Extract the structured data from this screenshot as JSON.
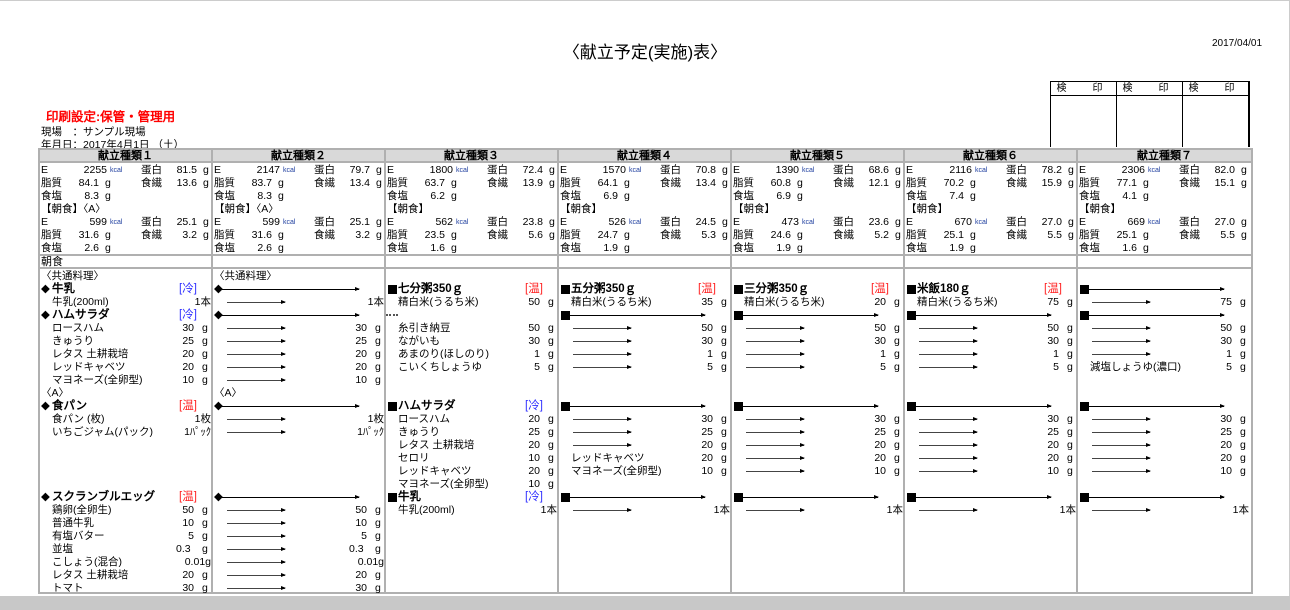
{
  "title": "〈献立予定(実施)表〉",
  "date": "2017/04/01",
  "stamp": {
    "labels": [
      "検　印",
      "検　印",
      "検　印"
    ]
  },
  "print_setting": "印刷設定:保管・管理用",
  "site": "現場　：サンプル現場",
  "ymd": "年月日：2017年4月1日 （土）",
  "meal_label": "朝食",
  "units": {
    "kcal": "kcal",
    "g": "g"
  },
  "nut_labels": {
    "E": "E",
    "protein": "蛋白",
    "fat": "脂質",
    "fiber": "食繊",
    "salt": "食塩"
  },
  "colors": {
    "cold": "#3030ff",
    "hot": "#ff2020",
    "print_setting": "#ff0000",
    "header_bg": "#d9d9d9"
  },
  "columns": [
    {
      "title": "献立種類１",
      "total": {
        "E": "2255",
        "protein": "81.5",
        "fat": "84.1",
        "fiber": "13.6",
        "salt": "8.3"
      },
      "bk_label": "【朝食】〈A〉",
      "bk": {
        "E": "599",
        "protein": "25.1",
        "fat": "31.6",
        "fiber": "3.2",
        "salt": "2.6"
      },
      "rows": [
        {
          "t": "h",
          "name": "〈共通料理〉"
        },
        {
          "t": "d",
          "m": "◆",
          "name": "牛乳",
          "tag": "[冷]",
          "tt": "cold"
        },
        {
          "t": "i",
          "name": "牛乳(200ml)",
          "q": "1本"
        },
        {
          "t": "d",
          "m": "◆",
          "name": "ハムサラダ",
          "tag": "[冷]",
          "tt": "cold"
        },
        {
          "t": "i",
          "name": "ロースハム",
          "q": "30",
          "u": "g"
        },
        {
          "t": "i",
          "name": "きゅうり",
          "q": "25",
          "u": "g"
        },
        {
          "t": "i",
          "name": "レタス 土耕栽培",
          "q": "20",
          "u": "g"
        },
        {
          "t": "i",
          "name": "レッドキャベツ",
          "q": "20",
          "u": "g"
        },
        {
          "t": "i",
          "name": "マヨネーズ(全卵型)",
          "q": "10",
          "u": "g"
        },
        {
          "t": "h",
          "name": "〈A〉"
        },
        {
          "t": "d",
          "m": "◆",
          "name": "食パン",
          "tag": "[温]",
          "tt": "hot"
        },
        {
          "t": "i",
          "name": "食パン (枚)",
          "q": "1枚"
        },
        {
          "t": "i",
          "name": "いちごジャム(パック)",
          "q": "1ﾊﾟｯｸ"
        },
        null,
        null,
        null,
        null,
        {
          "t": "d",
          "m": "◆",
          "name": "スクランブルエッグ",
          "tag": "[温]",
          "tt": "hot"
        },
        {
          "t": "i",
          "name": "鶏卵(全卵生)",
          "q": "50",
          "u": "g"
        },
        {
          "t": "i",
          "name": "普通牛乳",
          "q": "10",
          "u": "g"
        },
        {
          "t": "i",
          "name": "有塩バター",
          "q": "5",
          "u": "g"
        },
        {
          "t": "i",
          "name": "並塩",
          "q": "0.3",
          "u": "g"
        },
        {
          "t": "i",
          "name": "こしょう(混合)",
          "q": "0.01g"
        },
        {
          "t": "i",
          "name": "レタス 土耕栽培",
          "q": "20",
          "u": "g"
        },
        {
          "t": "i",
          "name": "トマト",
          "q": "30",
          "u": "g"
        }
      ]
    },
    {
      "title": "献立種類２",
      "total": {
        "E": "2147",
        "protein": "79.7",
        "fat": "83.7",
        "fiber": "13.4",
        "salt": "8.3"
      },
      "bk_label": "【朝食】〈A〉",
      "bk": {
        "E": "599",
        "protein": "25.1",
        "fat": "31.6",
        "fiber": "3.2",
        "salt": "2.6"
      },
      "rows": [
        {
          "t": "h",
          "name": "〈共通料理〉"
        },
        {
          "t": "da",
          "m": "◆"
        },
        {
          "t": "a",
          "q": "1本"
        },
        {
          "t": "da",
          "m": "◆"
        },
        {
          "t": "a",
          "q": "30",
          "u": "g"
        },
        {
          "t": "a",
          "q": "25",
          "u": "g"
        },
        {
          "t": "a",
          "q": "20",
          "u": "g"
        },
        {
          "t": "a",
          "q": "20",
          "u": "g"
        },
        {
          "t": "a",
          "q": "10",
          "u": "g"
        },
        {
          "t": "h",
          "name": "〈A〉"
        },
        {
          "t": "da",
          "m": "◆"
        },
        {
          "t": "a",
          "q": "1枚"
        },
        {
          "t": "a",
          "q": "1ﾊﾟｯｸ"
        },
        null,
        null,
        null,
        null,
        {
          "t": "da",
          "m": "◆"
        },
        {
          "t": "a",
          "q": "50",
          "u": "g"
        },
        {
          "t": "a",
          "q": "10",
          "u": "g"
        },
        {
          "t": "a",
          "q": "5",
          "u": "g"
        },
        {
          "t": "a",
          "q": "0.3",
          "u": "g"
        },
        {
          "t": "a",
          "q": "0.01g"
        },
        {
          "t": "a",
          "q": "20",
          "u": "g"
        },
        {
          "t": "a",
          "q": "30",
          "u": "g"
        }
      ]
    },
    {
      "title": "献立種類３",
      "total": {
        "E": "1800",
        "protein": "72.4",
        "fat": "63.7",
        "fiber": "13.9",
        "salt": "6.2"
      },
      "bk_label": "【朝食】",
      "bk": {
        "E": "562",
        "protein": "23.8",
        "fat": "23.5",
        "fiber": "5.6",
        "salt": "1.6"
      },
      "rows": [
        null,
        {
          "t": "d",
          "m": "■",
          "name": "七分粥350ｇ",
          "tag": "[温]",
          "tt": "hot"
        },
        {
          "t": "i",
          "name": "精白米(うるち米)",
          "q": "50",
          "u": "g"
        },
        {
          "t": "dots"
        },
        {
          "t": "i",
          "name": "糸引き納豆",
          "q": "50",
          "u": "g"
        },
        {
          "t": "i",
          "name": "ながいも",
          "q": "30",
          "u": "g"
        },
        {
          "t": "i",
          "name": "あまのり(ほしのり)",
          "q": "1",
          "u": "g"
        },
        {
          "t": "i",
          "name": "こいくちしょうゆ",
          "q": "5",
          "u": "g"
        },
        null,
        null,
        {
          "t": "d",
          "m": "■",
          "name": "ハムサラダ",
          "tag": "[冷]",
          "tt": "cold"
        },
        {
          "t": "i",
          "name": "ロースハム",
          "q": "20",
          "u": "g"
        },
        {
          "t": "i",
          "name": "きゅうり",
          "q": "25",
          "u": "g"
        },
        {
          "t": "i",
          "name": "レタス 土耕栽培",
          "q": "20",
          "u": "g"
        },
        {
          "t": "i",
          "name": "セロリ",
          "q": "10",
          "u": "g"
        },
        {
          "t": "i",
          "name": "レッドキャベツ",
          "q": "20",
          "u": "g"
        },
        {
          "t": "i",
          "name": "マヨネーズ(全卵型)",
          "q": "10",
          "u": "g"
        },
        {
          "t": "d",
          "m": "■",
          "name": "牛乳",
          "tag": "[冷]",
          "tt": "cold"
        },
        {
          "t": "i",
          "name": "牛乳(200ml)",
          "q": "1本"
        }
      ]
    },
    {
      "title": "献立種類４",
      "total": {
        "E": "1570",
        "protein": "70.8",
        "fat": "64.1",
        "fiber": "13.4",
        "salt": "6.9"
      },
      "bk_label": "【朝食】",
      "bk": {
        "E": "526",
        "protein": "24.5",
        "fat": "24.7",
        "fiber": "5.3",
        "salt": "1.9"
      },
      "rows": [
        null,
        {
          "t": "d",
          "m": "■",
          "name": "五分粥350ｇ",
          "tag": "[温]",
          "tt": "hot"
        },
        {
          "t": "i",
          "name": "精白米(うるち米)",
          "q": "35",
          "u": "g"
        },
        {
          "t": "da",
          "m": "■"
        },
        {
          "t": "a",
          "q": "50",
          "u": "g"
        },
        {
          "t": "a",
          "q": "30",
          "u": "g"
        },
        {
          "t": "a",
          "q": "1",
          "u": "g"
        },
        {
          "t": "a",
          "q": "5",
          "u": "g"
        },
        null,
        null,
        {
          "t": "da",
          "m": "■"
        },
        {
          "t": "a",
          "q": "30",
          "u": "g"
        },
        {
          "t": "a",
          "q": "25",
          "u": "g"
        },
        {
          "t": "a",
          "q": "20",
          "u": "g"
        },
        {
          "t": "i",
          "name": "レッドキャベツ",
          "q": "20",
          "u": "g"
        },
        {
          "t": "i",
          "name": "マヨネーズ(全卵型)",
          "q": "10",
          "u": "g"
        },
        null,
        {
          "t": "da",
          "m": "■"
        },
        {
          "t": "a",
          "q": "1本"
        }
      ]
    },
    {
      "title": "献立種類５",
      "total": {
        "E": "1390",
        "protein": "68.6",
        "fat": "60.8",
        "fiber": "12.1",
        "salt": "6.9"
      },
      "bk_label": "【朝食】",
      "bk": {
        "E": "473",
        "protein": "23.6",
        "fat": "24.6",
        "fiber": "5.2",
        "salt": "1.9"
      },
      "rows": [
        null,
        {
          "t": "d",
          "m": "■",
          "name": "三分粥350ｇ",
          "tag": "[温]",
          "tt": "hot"
        },
        {
          "t": "i",
          "name": "精白米(うるち米)",
          "q": "20",
          "u": "g"
        },
        {
          "t": "da",
          "m": "■"
        },
        {
          "t": "a",
          "q": "50",
          "u": "g"
        },
        {
          "t": "a",
          "q": "30",
          "u": "g"
        },
        {
          "t": "a",
          "q": "1",
          "u": "g"
        },
        {
          "t": "a",
          "q": "5",
          "u": "g"
        },
        null,
        null,
        {
          "t": "da",
          "m": "■"
        },
        {
          "t": "a",
          "q": "30",
          "u": "g"
        },
        {
          "t": "a",
          "q": "25",
          "u": "g"
        },
        {
          "t": "a",
          "q": "20",
          "u": "g"
        },
        {
          "t": "a",
          "q": "20",
          "u": "g"
        },
        {
          "t": "a",
          "q": "10",
          "u": "g"
        },
        null,
        {
          "t": "da",
          "m": "■"
        },
        {
          "t": "a",
          "q": "1本"
        }
      ]
    },
    {
      "title": "献立種類６",
      "total": {
        "E": "2116",
        "protein": "78.2",
        "fat": "70.2",
        "fiber": "15.9",
        "salt": "7.4"
      },
      "bk_label": "【朝食】",
      "bk": {
        "E": "670",
        "protein": "27.0",
        "fat": "25.1",
        "fiber": "5.5",
        "salt": "1.9"
      },
      "rows": [
        null,
        {
          "t": "d",
          "m": "■",
          "name": "米飯180ｇ",
          "tag": "[温]",
          "tt": "hot"
        },
        {
          "t": "i",
          "name": "精白米(うるち米)",
          "q": "75",
          "u": "g"
        },
        {
          "t": "da",
          "m": "■"
        },
        {
          "t": "a",
          "q": "50",
          "u": "g"
        },
        {
          "t": "a",
          "q": "30",
          "u": "g"
        },
        {
          "t": "a",
          "q": "1",
          "u": "g"
        },
        {
          "t": "a",
          "q": "5",
          "u": "g"
        },
        null,
        null,
        {
          "t": "da",
          "m": "■"
        },
        {
          "t": "a",
          "q": "30",
          "u": "g"
        },
        {
          "t": "a",
          "q": "25",
          "u": "g"
        },
        {
          "t": "a",
          "q": "20",
          "u": "g"
        },
        {
          "t": "a",
          "q": "20",
          "u": "g"
        },
        {
          "t": "a",
          "q": "10",
          "u": "g"
        },
        null,
        {
          "t": "da",
          "m": "■"
        },
        {
          "t": "a",
          "q": "1本"
        }
      ]
    },
    {
      "title": "献立種類７",
      "total": {
        "E": "2306",
        "protein": "82.0",
        "fat": "77.1",
        "fiber": "15.1",
        "salt": "4.1"
      },
      "bk_label": "【朝食】",
      "bk": {
        "E": "669",
        "protein": "27.0",
        "fat": "25.1",
        "fiber": "5.5",
        "salt": "1.6"
      },
      "rows": [
        null,
        {
          "t": "da",
          "m": "■"
        },
        {
          "t": "a",
          "q": "75",
          "u": "g"
        },
        {
          "t": "da",
          "m": "■"
        },
        {
          "t": "a",
          "q": "50",
          "u": "g"
        },
        {
          "t": "a",
          "q": "30",
          "u": "g"
        },
        {
          "t": "a",
          "q": "1",
          "u": "g"
        },
        {
          "t": "i",
          "name": "減塩しょうゆ(濃口)",
          "q": "5",
          "u": "g"
        },
        null,
        null,
        {
          "t": "da",
          "m": "■"
        },
        {
          "t": "a",
          "q": "30",
          "u": "g"
        },
        {
          "t": "a",
          "q": "25",
          "u": "g"
        },
        {
          "t": "a",
          "q": "20",
          "u": "g"
        },
        {
          "t": "a",
          "q": "20",
          "u": "g"
        },
        {
          "t": "a",
          "q": "10",
          "u": "g"
        },
        null,
        {
          "t": "da",
          "m": "■"
        },
        {
          "t": "a",
          "q": "1本"
        }
      ]
    }
  ]
}
